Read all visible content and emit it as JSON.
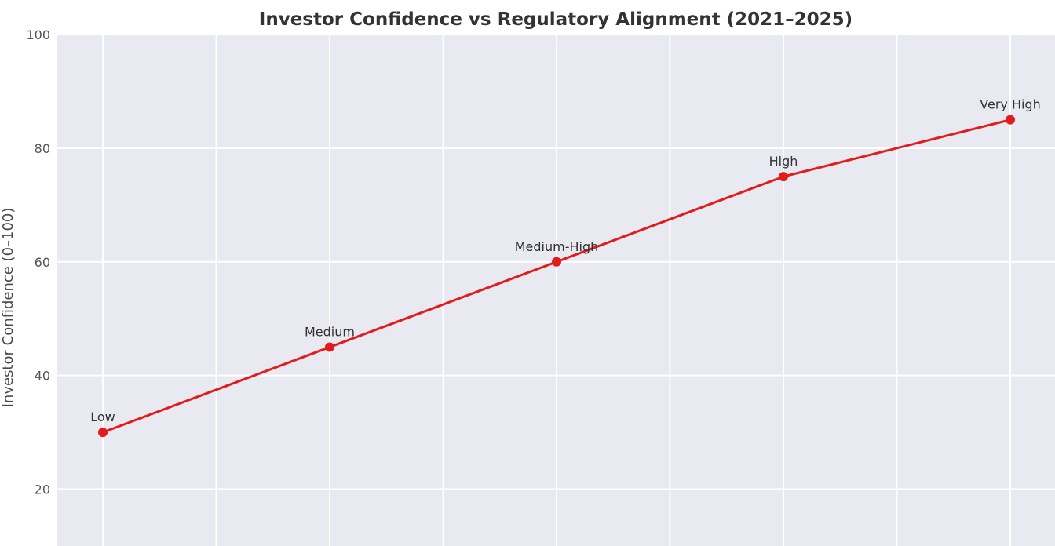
{
  "chart_data": {
    "type": "line",
    "title": "Investor Confidence vs Regulatory Alignment (2021–2025)",
    "xlabel": "",
    "ylabel": "Investor Confidence (0–100)",
    "ylim": [
      10,
      100
    ],
    "yticks": [
      20,
      40,
      60,
      80,
      100
    ],
    "grid": true,
    "colors": {
      "plot_background": "#e9e9f1",
      "grid": "#ffffff",
      "line": "#e31b1b",
      "marker": "#e31b1b"
    },
    "points": [
      {
        "label": "Low",
        "y": 30
      },
      {
        "label": "Medium",
        "y": 45
      },
      {
        "label": "Medium-High",
        "y": 60
      },
      {
        "label": "High",
        "y": 75
      },
      {
        "label": "Very High",
        "y": 85
      }
    ]
  }
}
